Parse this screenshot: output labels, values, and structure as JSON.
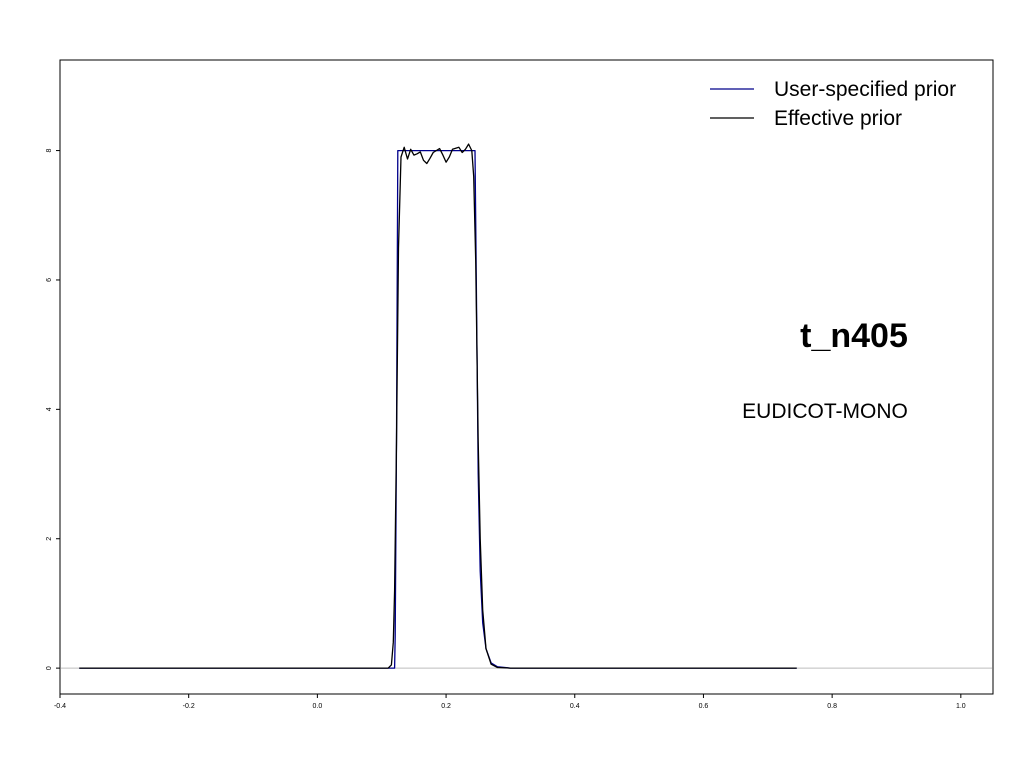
{
  "chart_data": {
    "type": "line",
    "title": "t_n405",
    "subtitle": "EUDICOT-MONO",
    "xlabel": "",
    "ylabel": "",
    "xlim": [
      -0.4,
      1.05
    ],
    "ylim": [
      -0.4,
      9.4
    ],
    "x_ticks": [
      -0.4,
      -0.2,
      0.0,
      0.2,
      0.4,
      0.6,
      0.8,
      1.0
    ],
    "x_tick_labels": [
      "-0.4",
      "-0.2",
      "0.0",
      "0.2",
      "0.4",
      "0.6",
      "0.8",
      "1.0"
    ],
    "y_ticks": [
      0,
      2,
      4,
      6,
      8
    ],
    "y_tick_labels": [
      "0",
      "2",
      "4",
      "6",
      "8"
    ],
    "grid": false,
    "legend_position": "top-right",
    "reference_line": {
      "y": 0,
      "color": "#bebebe"
    },
    "series": [
      {
        "name": "User-specified prior",
        "color": "#00008b",
        "points": [
          [
            -0.37,
            0
          ],
          [
            0.12,
            0
          ],
          [
            0.121,
            0.5
          ],
          [
            0.123,
            3.5
          ],
          [
            0.125,
            8
          ],
          [
            0.245,
            8
          ],
          [
            0.247,
            6
          ],
          [
            0.25,
            3
          ],
          [
            0.253,
            1.5
          ],
          [
            0.257,
            0.7
          ],
          [
            0.262,
            0.3
          ],
          [
            0.27,
            0.08
          ],
          [
            0.28,
            0.02
          ],
          [
            0.3,
            0
          ],
          [
            0.745,
            0
          ]
        ]
      },
      {
        "name": "Effective prior",
        "color": "#000000",
        "points": [
          [
            -0.37,
            0
          ],
          [
            0.11,
            0
          ],
          [
            0.115,
            0.05
          ],
          [
            0.118,
            0.4
          ],
          [
            0.12,
            1.2
          ],
          [
            0.123,
            3.5
          ],
          [
            0.126,
            6.5
          ],
          [
            0.13,
            7.9
          ],
          [
            0.135,
            8.05
          ],
          [
            0.14,
            7.87
          ],
          [
            0.145,
            8.02
          ],
          [
            0.15,
            7.93
          ],
          [
            0.155,
            7.95
          ],
          [
            0.16,
            7.98
          ],
          [
            0.165,
            7.85
          ],
          [
            0.17,
            7.8
          ],
          [
            0.175,
            7.88
          ],
          [
            0.18,
            7.97
          ],
          [
            0.19,
            8.03
          ],
          [
            0.195,
            7.93
          ],
          [
            0.2,
            7.82
          ],
          [
            0.205,
            7.9
          ],
          [
            0.21,
            8.02
          ],
          [
            0.22,
            8.05
          ],
          [
            0.225,
            7.97
          ],
          [
            0.23,
            8.02
          ],
          [
            0.235,
            8.1
          ],
          [
            0.24,
            8.0
          ],
          [
            0.243,
            7.6
          ],
          [
            0.246,
            6.3
          ],
          [
            0.25,
            3.5
          ],
          [
            0.253,
            2.0
          ],
          [
            0.257,
            0.9
          ],
          [
            0.262,
            0.3
          ],
          [
            0.27,
            0.06
          ],
          [
            0.28,
            0.01
          ],
          [
            0.3,
            0
          ],
          [
            0.745,
            0
          ]
        ]
      }
    ]
  }
}
